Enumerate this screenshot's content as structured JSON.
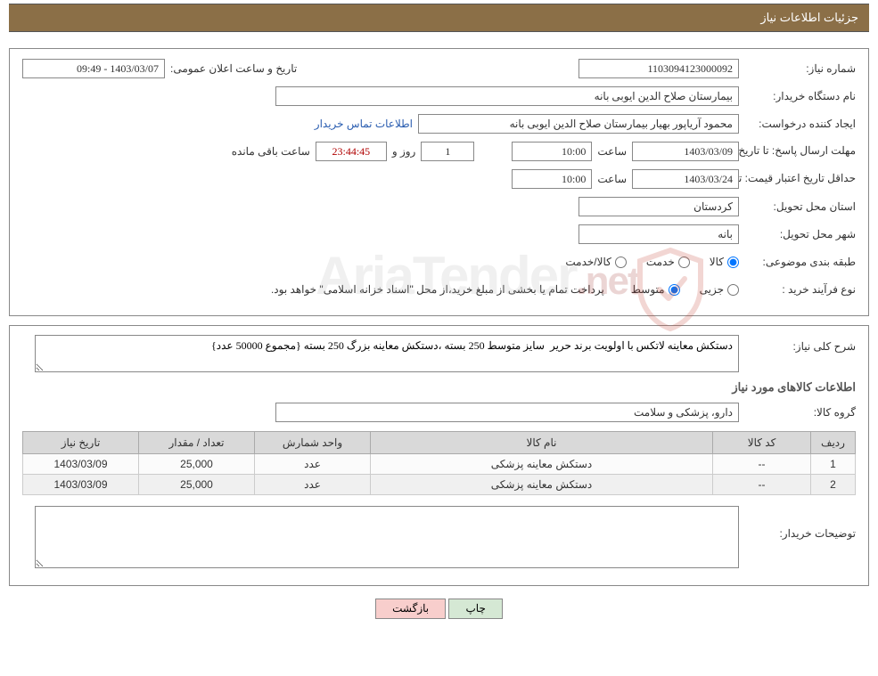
{
  "header": {
    "title": "جزئیات اطلاعات نیاز"
  },
  "form": {
    "need_no_label": "شماره نیاز:",
    "need_no": "1103094123000092",
    "announce_label": "تاریخ و ساعت اعلان عمومی:",
    "announce_value": "1403/03/07 - 09:49",
    "buyer_org_label": "نام دستگاه خریدار:",
    "buyer_org": "بیمارستان صلاح الدین ایوبی بانه",
    "requester_label": "ایجاد کننده درخواست:",
    "requester": "محمود آریاپور بهیار بیمارستان صلاح الدین ایوبی بانه",
    "buyer_contact_link": "اطلاعات تماس خریدار",
    "deadline_label": "مهلت ارسال پاسخ:",
    "until_label": "تا تاریخ:",
    "deadline_date": "1403/03/09",
    "hour_label": "ساعت",
    "deadline_time": "10:00",
    "days_field": "1",
    "days_suffix": "روز و",
    "countdown": "23:44:45",
    "remain_label": "ساعت باقی مانده",
    "validity_label": "حداقل تاریخ اعتبار قیمت:",
    "validity_date": "1403/03/24",
    "validity_time": "10:00",
    "province_label": "استان محل تحویل:",
    "province": "کردستان",
    "city_label": "شهر محل تحویل:",
    "city": "بانه",
    "classification_label": "طبقه بندی موضوعی:",
    "class_goods": "کالا",
    "class_service": "خدمت",
    "class_mixed": "کالا/خدمت",
    "purchase_type_label": "نوع فرآیند خرید :",
    "purchase_partial": "جزیی",
    "purchase_medium": "متوسط",
    "payment_note": "پرداخت تمام یا بخشی از مبلغ خرید،از محل \"اسناد خزانه اسلامی\" خواهد بود."
  },
  "detail": {
    "overall_label": "شرح کلی نیاز:",
    "overall_text": "دستکش معاینه لاتکس با اولویت برند حریر  سایز متوسط 250 بسته ،دستکش معاینه بزرگ 250 بسته {مجموع 50000 عدد}",
    "items_section": "اطلاعات کالاهای مورد نیاز",
    "group_label": "گروه کالا:",
    "group_value": "دارو، پزشکی و سلامت",
    "table": {
      "headers": {
        "row": "ردیف",
        "code": "کد کالا",
        "name": "نام کالا",
        "unit": "واحد شمارش",
        "qty": "تعداد / مقدار",
        "date": "تاریخ نیاز"
      },
      "rows": [
        {
          "idx": "1",
          "code": "--",
          "name": "دستکش معاینه پزشکی",
          "unit": "عدد",
          "qty": "25,000",
          "date": "1403/03/09"
        },
        {
          "idx": "2",
          "code": "--",
          "name": "دستکش معاینه پزشکی",
          "unit": "عدد",
          "qty": "25,000",
          "date": "1403/03/09"
        }
      ]
    },
    "buyer_note_label": "توضیحات خریدار:",
    "buyer_note": ""
  },
  "buttons": {
    "print": "چاپ",
    "back": "بازگشت"
  },
  "watermark": {
    "brand": "AriaTender",
    "suffix": ".net"
  },
  "style": {
    "header_bg": "#8b6f47",
    "border_color": "#888888",
    "link_color": "#2a5db0",
    "red_color": "#b00000",
    "th_bg": "#d9d9d9",
    "btn_print_bg": "#d5e8d4",
    "btn_back_bg": "#f8cecc"
  }
}
